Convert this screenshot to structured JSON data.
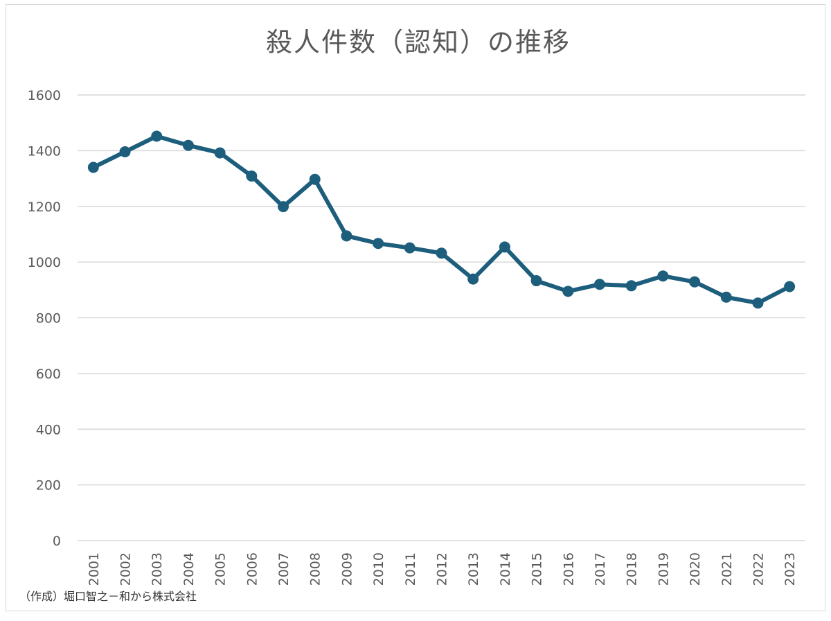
{
  "chart_data": {
    "type": "line",
    "title": "殺人件数（認知）の推移",
    "xlabel": "",
    "ylabel": "",
    "ylim": [
      0,
      1600
    ],
    "yticks": [
      0,
      200,
      400,
      600,
      800,
      1000,
      1200,
      1400,
      1600
    ],
    "grid": true,
    "legend": "none",
    "categories": [
      "2001",
      "2002",
      "2003",
      "2004",
      "2005",
      "2006",
      "2007",
      "2008",
      "2009",
      "2010",
      "2011",
      "2012",
      "2013",
      "2014",
      "2015",
      "2016",
      "2017",
      "2018",
      "2019",
      "2020",
      "2021",
      "2022",
      "2023"
    ],
    "series": [
      {
        "values": [
          1340,
          1396,
          1452,
          1419,
          1392,
          1309,
          1199,
          1297,
          1094,
          1067,
          1051,
          1032,
          939,
          1054,
          933,
          895,
          920,
          915,
          950,
          929,
          874,
          853,
          912
        ],
        "color": "#1d5e7d"
      }
    ]
  },
  "source_note": "（作成）堀口智之－和から株式会社"
}
